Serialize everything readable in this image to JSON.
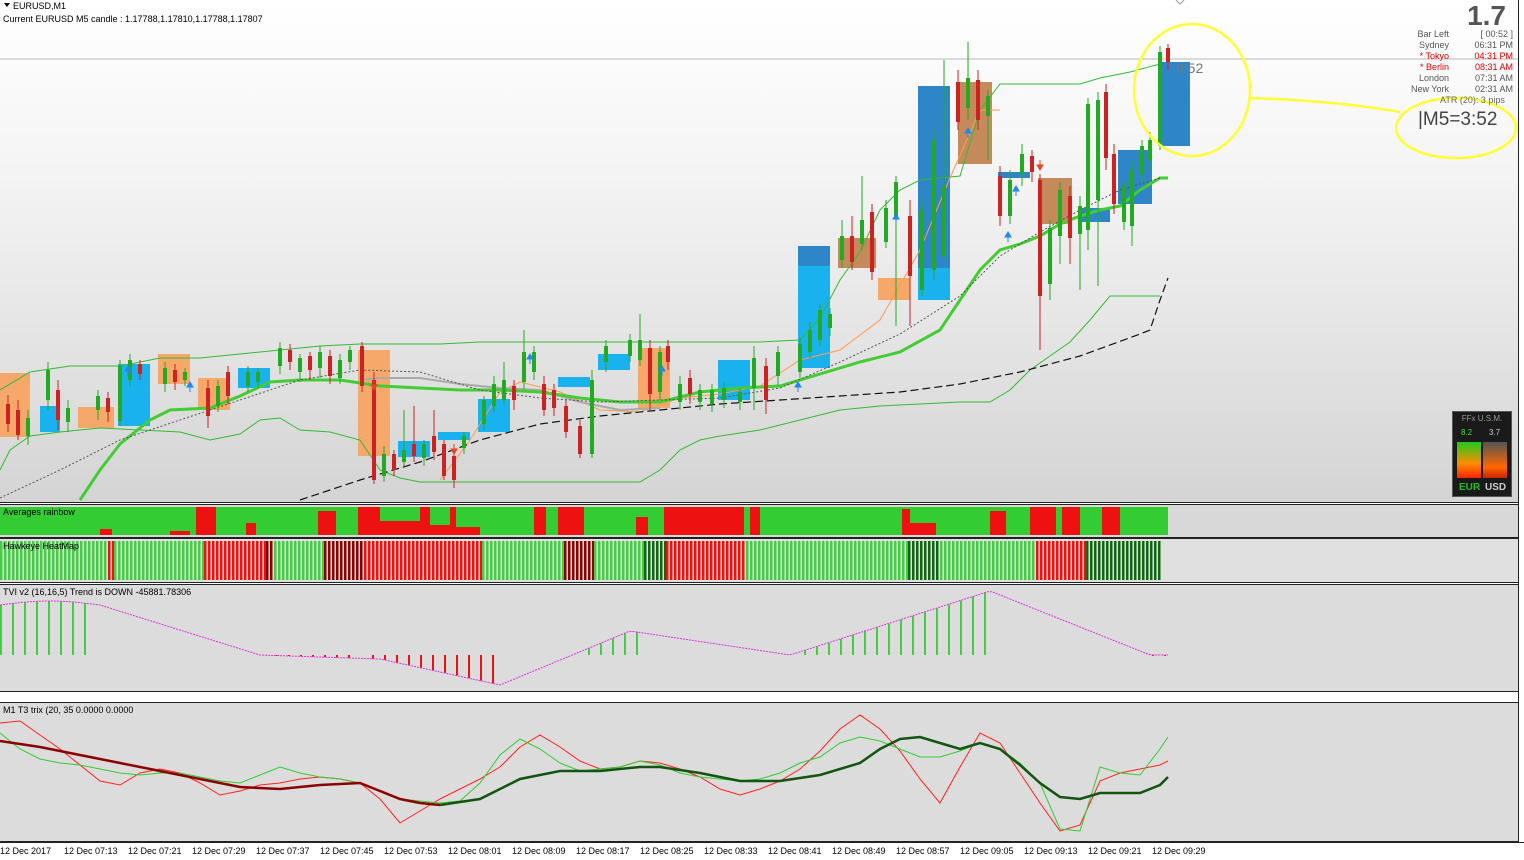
{
  "header": {
    "title": "EURUSD,M1",
    "candle_info": "Current EURUSD M5 candle : 1.17788,1.17810,1.17788,1.17807"
  },
  "price_big": "1.7",
  "sessions": {
    "bar_left_label": "Bar Left",
    "bar_left_value": "[ 00:52 ]",
    "rows": [
      {
        "name": "Sydney",
        "time": "06:31 PM",
        "highlight": false
      },
      {
        "name": "* Tokyo",
        "time": "04:31 PM",
        "highlight": true
      },
      {
        "name": "* Berlin",
        "time": "08:31 AM",
        "highlight": true
      },
      {
        "name": "London",
        "time": "07:31 AM",
        "highlight": false
      },
      {
        "name": "New York",
        "time": "02:31 AM",
        "highlight": false
      }
    ],
    "atr": "ATR (20): 3 pips"
  },
  "countdown": "0:52",
  "m5_annotation": "|M5=3:52",
  "ffx": {
    "title": "FFx U.S.M.",
    "value_eur": "8.2",
    "value_usd": "3.7",
    "currency_1": "EUR",
    "currency_2": "USD"
  },
  "indicators": {
    "rainbow": "Averages rainbow",
    "heatmap": "Hawkeye HeatMap",
    "tvi": "TVI v2 (16,16,5) Trend is DOWN -45881.78306",
    "trix": "M1 T3 trix (20, 35 0.0000 0.0000"
  },
  "time_axis": [
    "12 Dec 2017",
    "12 Dec 07:13",
    "12 Dec 07:21",
    "12 Dec 07:29",
    "12 Dec 07:37",
    "12 Dec 07:45",
    "12 Dec 07:53",
    "12 Dec 08:01",
    "12 Dec 08:09",
    "12 Dec 08:17",
    "12 Dec 08:25",
    "12 Dec 08:33",
    "12 Dec 08:41",
    "12 Dec 08:49",
    "12 Dec 08:57",
    "12 Dec 09:05",
    "12 Dec 09:13",
    "12 Dec 09:21",
    "12 Dec 09:29"
  ],
  "colors": {
    "bull_box": "#1ab2ee",
    "bull_box_dark": "#2e86c9",
    "bear_box": "#f5a86a",
    "bear_box_dark": "#c48a5c",
    "bull_candle": "#22aa22",
    "bear_candle": "#cc2222",
    "ma_thick": "#44cc33",
    "band": "#33bb33",
    "highlight": "#ffff33"
  }
}
